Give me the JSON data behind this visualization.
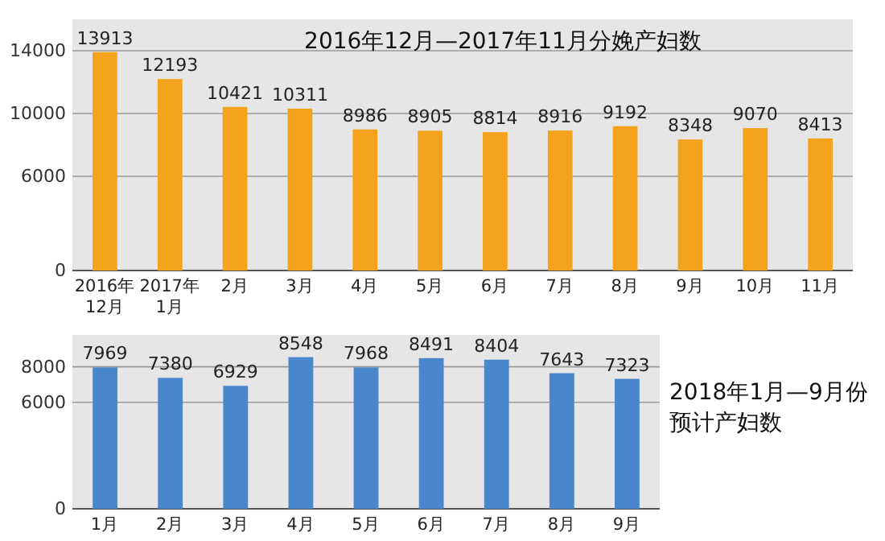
{
  "chart_data": [
    {
      "type": "bar",
      "title": "2016年12月—2017年11月分娩产妇数",
      "categories": [
        "2016年\n12月",
        "2017年\n1月",
        "2月",
        "3月",
        "4月",
        "5月",
        "6月",
        "7月",
        "8月",
        "9月",
        "10月",
        "11月"
      ],
      "values": [
        13913,
        12193,
        10421,
        10311,
        8986,
        8905,
        8814,
        8916,
        9192,
        8348,
        9070,
        8413
      ],
      "color": "#f5a31c",
      "ylim": [
        0,
        16000
      ],
      "yticks": [
        0,
        6000,
        10000,
        14000
      ],
      "grid": "y",
      "data_labels": true
    },
    {
      "type": "bar",
      "title": "2018年1月—9月份预计产妇数",
      "categories": [
        "1月",
        "2月",
        "3月",
        "4月",
        "5月",
        "6月",
        "7月",
        "8月",
        "9月"
      ],
      "values": [
        7969,
        7380,
        6929,
        8548,
        7968,
        8491,
        8404,
        7643,
        7323
      ],
      "color": "#4a86cc",
      "ylim": [
        0,
        9800
      ],
      "yticks": [
        0,
        6000,
        8000
      ],
      "grid": "y",
      "data_labels": true
    }
  ]
}
